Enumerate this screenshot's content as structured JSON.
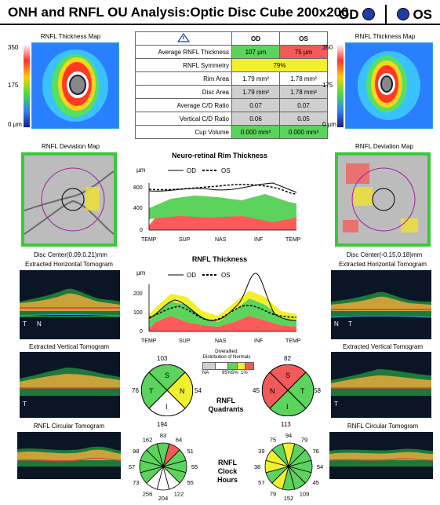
{
  "header": {
    "title": "ONH and RNFL OU Analysis:Optic Disc Cube 200x200",
    "od": "OD",
    "os": "OS"
  },
  "maps": {
    "thickness_title": "RNFL Thickness Map",
    "deviation_title": "RNFL Deviation Map",
    "scale_top": "350",
    "scale_mid": "175",
    "scale_bottom": "0 µm",
    "disc_center_od": "Disc Center(0.09,0.21)mm",
    "disc_center_os": "Disc Center(-0.15,0.18)mm"
  },
  "params": {
    "col_od": "OD",
    "col_os": "OS",
    "rows": [
      {
        "label": "Average RNFL Thickness",
        "od": "107 µm",
        "os": "75 µm"
      },
      {
        "label": "RNFL Symmetry",
        "both": "79%"
      },
      {
        "label": "Rim Area",
        "od": "1.79 mm²",
        "os": "1.78 mm²"
      },
      {
        "label": "Disc Area",
        "od": "1.79 mm²",
        "os": "1.78 mm²"
      },
      {
        "label": "Average C/D Ratio",
        "od": "0.07",
        "os": "0.07"
      },
      {
        "label": "Vertical C/D Ratio",
        "od": "0.06",
        "os": "0.05"
      },
      {
        "label": "Cup Volume",
        "od": "0.000 mm³",
        "os": "0.000 mm³"
      }
    ]
  },
  "tomograms": {
    "horizontal": "Extracted Horizontal Tomogram",
    "vertical": "Extracted Vertical Tomogram",
    "circular": "RNFL Circular Tomogram",
    "t": "T",
    "n": "N"
  },
  "rim_chart": {
    "title": "Neuro-retinal Rim Thickness",
    "unit": "µm",
    "legend_od": "OD",
    "legend_os": "OS",
    "yticks": [
      "800",
      "400",
      "0"
    ],
    "xticks": [
      "TEMP",
      "SUP",
      "NAS",
      "INF",
      "TEMP"
    ]
  },
  "rnfl_chart": {
    "title": "RNFL Thickness",
    "unit": "µm",
    "legend_od": "OD",
    "legend_os": "OS",
    "yticks": [
      "200",
      "100",
      "0"
    ],
    "xticks": [
      "TEMP",
      "SUP",
      "NAS",
      "INF",
      "TEMP"
    ]
  },
  "normals": {
    "title1": "Diverallied:",
    "title2": "Distribution of Normals",
    "na": "NA",
    "p95": "95%",
    "p5": "5%",
    "p1": "1%"
  },
  "quadrants": {
    "label1": "RNFL",
    "label2": "Quadrants",
    "od": {
      "top": "103",
      "left": "76",
      "right": "54",
      "bottom": "194",
      "S": "S",
      "T": "T",
      "N": "N",
      "I": "I"
    },
    "os": {
      "top": "82",
      "left": "45",
      "right": "58",
      "bottom": "113",
      "S": "S",
      "T": "T",
      "N": "N",
      "I": "I"
    }
  },
  "clock": {
    "label1": "RNFL",
    "label2": "Clock",
    "label3": "Hours",
    "od": [
      "83",
      "64",
      "51",
      "55",
      "55",
      "122",
      "204",
      "256",
      "73",
      "57",
      "98",
      "162"
    ],
    "os": [
      "94",
      "79",
      "76",
      "54",
      "45",
      "109",
      "152",
      "79",
      "57",
      "38",
      "39",
      "75"
    ]
  },
  "colors": {
    "green": "#5cd35c",
    "yellow": "#f1f02c",
    "red": "#f05a5a",
    "gray": "#cfcfcf",
    "accent": "#1b3ea8"
  }
}
